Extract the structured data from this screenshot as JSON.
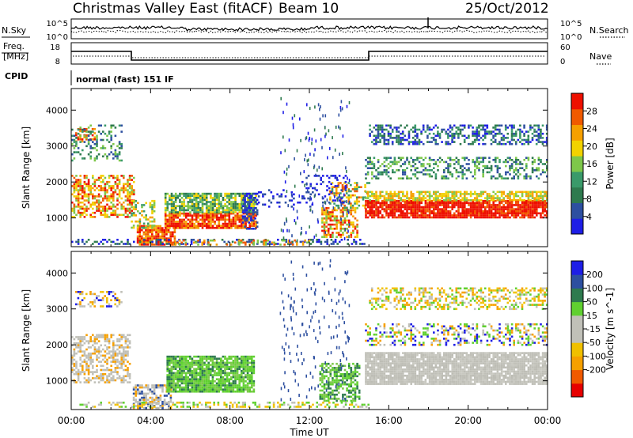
{
  "header": {
    "title": "Christmas Valley East (fitACF)",
    "beam": "Beam 10",
    "date": "25/Oct/2012"
  },
  "panels": {
    "nsky_label": "N.Sky",
    "nsky_ticks": [
      "10^5",
      "10^0"
    ],
    "nsearch_label": "N.Search",
    "nsearch_ticks": [
      "10^5",
      "10^0"
    ],
    "freq_label_1": "Freq.",
    "freq_label_2": "[MHz]",
    "freq_ticks": [
      "18",
      "8"
    ],
    "nave_label": "Nave",
    "nave_ticks": [
      "60",
      "0"
    ],
    "cpid_label": "CPID",
    "cpid_value": "normal (fast) 151 IF"
  },
  "colors": {
    "power_scale": [
      "#1e1ee6",
      "#2d4fa0",
      "#2e7a4e",
      "#3a9a6a",
      "#7ec74a",
      "#f2d200",
      "#f6a000",
      "#f05a00",
      "#ee1000"
    ],
    "velocity_scale": [
      "#e60000",
      "#f05a00",
      "#f6a000",
      "#f0c000",
      "#c0c0b8",
      "#c0c0b8",
      "#60d030",
      "#2e7a4e",
      "#2d4fa0",
      "#1e1ee6"
    ],
    "ground_scatter": "#bdbdb5"
  },
  "chart_data": [
    {
      "type": "heatmap",
      "title": "Power",
      "xlabel": "Time UT",
      "ylabel": "Slant Range [km]",
      "xlim_hours": [
        0,
        24
      ],
      "x_ticks": [
        "00:00",
        "04:00",
        "08:00",
        "12:00",
        "16:00",
        "20:00",
        "00:00"
      ],
      "ylim": [
        200,
        4600
      ],
      "y_ticks": [
        1000,
        2000,
        3000,
        4000
      ],
      "colorbar": {
        "label": "Power [dB]",
        "ticks": [
          4,
          8,
          12,
          16,
          20,
          24,
          28
        ],
        "range": [
          0,
          32
        ]
      }
    },
    {
      "type": "heatmap",
      "title": "Velocity",
      "xlabel": "Time UT",
      "ylabel": "Slant Range [km]",
      "xlim_hours": [
        0,
        24
      ],
      "x_ticks": [
        "00:00",
        "04:00",
        "08:00",
        "12:00",
        "16:00",
        "20:00",
        "00:00"
      ],
      "ylim": [
        200,
        4600
      ],
      "y_ticks": [
        1000,
        2000,
        3000,
        4000
      ],
      "colorbar": {
        "label": "Velocity [m s^-1]",
        "ticks": [
          200,
          100,
          50,
          15,
          -15,
          -50,
          -100,
          -200
        ]
      }
    }
  ]
}
